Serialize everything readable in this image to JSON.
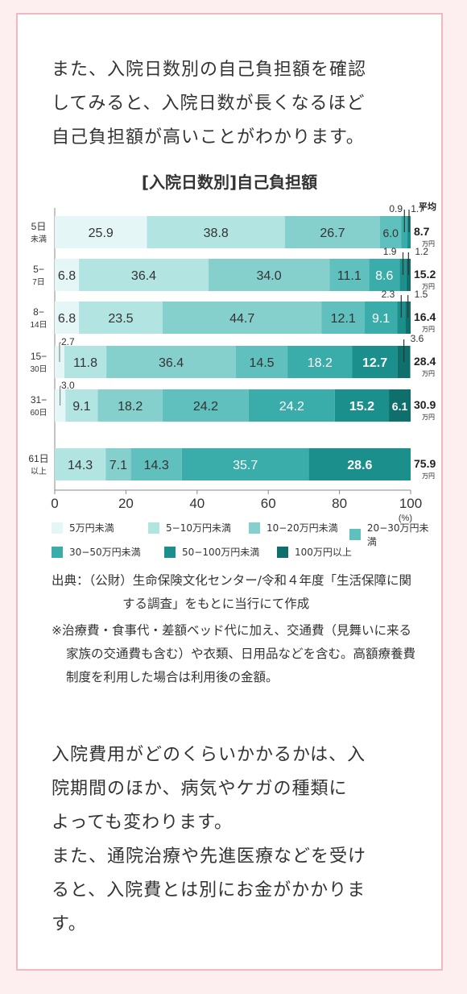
{
  "intro_text": "また、入院日数別の自己負担額を確認\nしてみると、入院日数が長くなるほど\n自己負担額が高いことがわかります。",
  "chart_data": {
    "type": "bar",
    "orientation": "horizontal",
    "stacked": true,
    "title": "[入院日数別]自己負担額",
    "categories": [
      {
        "line1": "5日",
        "line2": "未満"
      },
      {
        "line1": "5−",
        "line2": "7日"
      },
      {
        "line1": "8−",
        "line2": "14日"
      },
      {
        "line1": "15−",
        "line2": "30日"
      },
      {
        "line1": "31−",
        "line2": "60日"
      },
      {
        "line1": "61日",
        "line2": "以上"
      }
    ],
    "series": [
      {
        "name": "5万円未満",
        "color": "#e4f6f6",
        "values": [
          25.9,
          6.8,
          6.8,
          2.7,
          3.0,
          0
        ]
      },
      {
        "name": "5−10万円未満",
        "color": "#b2e4e2",
        "values": [
          38.8,
          36.4,
          23.5,
          11.8,
          9.1,
          14.3
        ]
      },
      {
        "name": "10−20万円未満",
        "color": "#85d0cd",
        "values": [
          26.7,
          34.0,
          44.7,
          36.4,
          18.2,
          7.1
        ]
      },
      {
        "name": "20−30万円未満",
        "color": "#5fc0bd",
        "values": [
          6.0,
          11.1,
          12.1,
          14.5,
          24.2,
          14.3
        ]
      },
      {
        "name": "30−50万円未満",
        "color": "#3aadaa",
        "values": [
          1.7,
          8.6,
          9.1,
          18.2,
          24.2,
          35.7
        ]
      },
      {
        "name": "50−100万円未満",
        "color": "#1a8f8c",
        "values": [
          0.9,
          1.9,
          2.3,
          12.7,
          15.2,
          28.6
        ]
      },
      {
        "name": "100万円以上",
        "color": "#0e6f6c",
        "values": [
          0,
          1.2,
          1.5,
          3.6,
          6.1,
          0
        ]
      }
    ],
    "averages": [
      {
        "value": "8.7",
        "unit": "万円"
      },
      {
        "value": "15.2",
        "unit": "万円"
      },
      {
        "value": "16.4",
        "unit": "万円"
      },
      {
        "value": "28.4",
        "unit": "万円"
      },
      {
        "value": "30.9",
        "unit": "万円"
      },
      {
        "value": "75.9",
        "unit": "万円"
      }
    ],
    "average_label": "平均",
    "xlim": [
      0,
      100
    ],
    "xticks": [
      "0",
      "20",
      "40",
      "60",
      "80",
      "100"
    ],
    "xunit": "(%)"
  },
  "source": "出典：（公財）生命保険文化センター/令和４年度「生活保障に関する調査」をもとに当行にて作成",
  "note": "※治療費・食事代・差額ベッド代に加え、交通費（見舞いに来る家族の交通費も含む）や衣類、日用品などを含む。高額療養費制度を利用した場合は利用後の金額。",
  "outro_text": "入院費用がどのくらいかかるかは、入\n院期間のほか、病気やケガの種類に\nよっても変わります。\nまた、通院治療や先進医療などを受け\nると、入院費とは別にお金がかかりま\nす。"
}
